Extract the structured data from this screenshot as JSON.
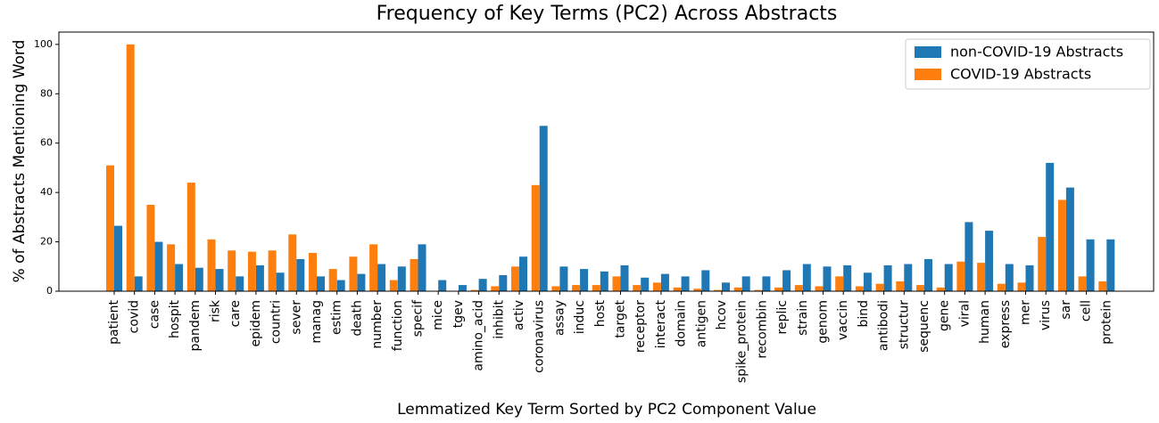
{
  "chart_data": {
    "type": "bar",
    "title": "Frequency of Key Terms (PC2) Across Abstracts",
    "x_label": "Lemmatized Key Term Sorted by PC2 Component Value",
    "y_label": "% of Abstracts Mentioning Word",
    "categories": [
      "patient",
      "covid",
      "case",
      "hospit",
      "pandem",
      "risk",
      "care",
      "epidem",
      "countri",
      "sever",
      "manag",
      "estim",
      "death",
      "number",
      "function",
      "specif",
      "mice",
      "tgev",
      "amino_acid",
      "inhibit",
      "activ",
      "coronavirus",
      "assay",
      "induc",
      "host",
      "target",
      "receptor",
      "interact",
      "domain",
      "antigen",
      "hcov",
      "spike_protein",
      "recombin",
      "replic",
      "strain",
      "genom",
      "vaccin",
      "bind",
      "antibodi",
      "structur",
      "sequenc",
      "gene",
      "viral",
      "human",
      "express",
      "mer",
      "virus",
      "sar",
      "cell",
      "protein"
    ],
    "series": [
      {
        "name": "non-COVID-19 Abstracts",
        "color": "#1f77b4",
        "values": [
          26.5,
          6,
          20,
          11,
          9.5,
          9,
          6,
          10.5,
          7.5,
          13,
          6,
          4.5,
          7,
          11,
          10,
          19,
          4.5,
          2.5,
          5,
          6.5,
          14,
          67,
          10,
          9,
          8,
          10.5,
          5.5,
          7,
          6,
          8.5,
          3.5,
          6,
          6,
          8.5,
          11,
          10,
          10.5,
          7.5,
          10.5,
          11,
          13,
          11,
          28,
          24.5,
          11,
          10.5,
          52,
          42,
          21,
          21
        ]
      },
      {
        "name": "COVID-19 Abstracts",
        "color": "#ff7f0e",
        "values": [
          51,
          100,
          35,
          19,
          44,
          21,
          16.5,
          16,
          16.5,
          23,
          15.5,
          9,
          14,
          19,
          4.5,
          13,
          0,
          0,
          0.5,
          2,
          10,
          43,
          2,
          2.5,
          2.5,
          6,
          2.5,
          3.5,
          1.5,
          1,
          0.5,
          1.5,
          0.5,
          1.5,
          2.5,
          2,
          6,
          2,
          3,
          4,
          2.5,
          1.5,
          12,
          11.5,
          3,
          3.5,
          22,
          37,
          6,
          4
        ]
      }
    ],
    "ylim": [
      0,
      105
    ],
    "yticks": [
      0,
      20,
      40,
      60,
      80,
      100
    ],
    "legend": "upper right"
  }
}
